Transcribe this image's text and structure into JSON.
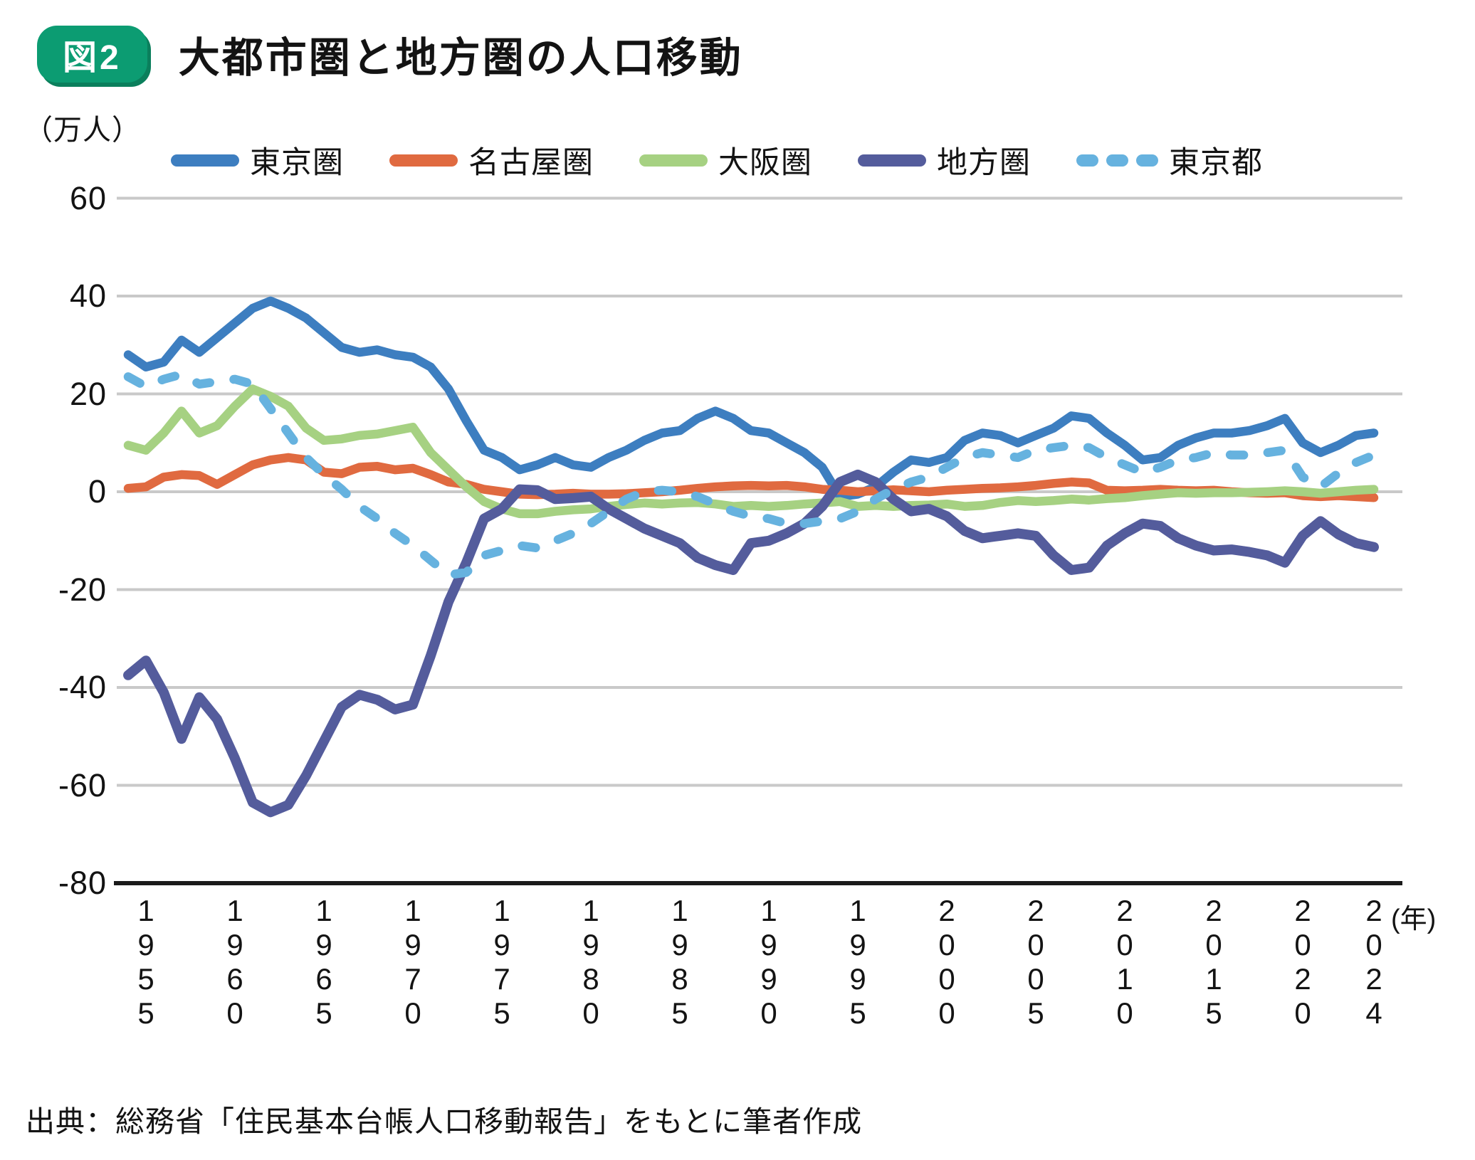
{
  "figure": {
    "badge": "図2",
    "title": "大都市圏と地方圏の人口移動",
    "unit_label": "（万人）",
    "year_label": "(年)",
    "source": "出典：総務省「住民基本台帳人口移動報告」をもとに筆者作成"
  },
  "legend": [
    {
      "label": "東京圏",
      "color": "#3d7ec0",
      "dashed": false
    },
    {
      "label": "名古屋圏",
      "color": "#e06a40",
      "dashed": false
    },
    {
      "label": "大阪圏",
      "color": "#a6d182",
      "dashed": false
    },
    {
      "label": "地方圏",
      "color": "#545c9c",
      "dashed": false
    },
    {
      "label": "東京都",
      "color": "#66b2df",
      "dashed": true
    }
  ],
  "colors": {
    "grid": "#c9c9c9",
    "axis": "#1a1a1a",
    "badge_green": "#0c9c72"
  },
  "chart_data": {
    "type": "line",
    "title": "大都市圏と地方圏の人口移動",
    "ylabel": "（万人）",
    "xlabel": "(年)",
    "ylim": [
      -80,
      60
    ],
    "ytick_interval": 20,
    "grid": true,
    "legend_position": "top",
    "x_start_year": 1954,
    "x_end_year": 2024,
    "x_ticks": [
      "1955",
      "1960",
      "1965",
      "1970",
      "1975",
      "1980",
      "1985",
      "1990",
      "1995",
      "2000",
      "2005",
      "2010",
      "2015",
      "2020",
      "2024"
    ],
    "series": [
      {
        "name": "東京圏",
        "color": "#3d7ec0",
        "style": "solid",
        "values": [
          28,
          25.5,
          26.5,
          31,
          28.5,
          31.5,
          34.5,
          37.5,
          39,
          37.5,
          35.5,
          32.5,
          29.5,
          28.5,
          29,
          28,
          27.5,
          25.5,
          21,
          14.5,
          8.5,
          7,
          4.5,
          5.5,
          7,
          5.5,
          5,
          7,
          8.5,
          10.5,
          12,
          12.5,
          15,
          16.5,
          15,
          12.5,
          12,
          10,
          8,
          5,
          -1,
          -0.5,
          1,
          4,
          6.5,
          6,
          7,
          10.5,
          12,
          11.5,
          10,
          11.5,
          13,
          15.5,
          15,
          12,
          9.5,
          6.5,
          7,
          9.5,
          11,
          12,
          12,
          12.5,
          13.5,
          15,
          10,
          8,
          9.5,
          11.5,
          12
        ]
      },
      {
        "name": "名古屋圏",
        "color": "#e06a40",
        "style": "solid",
        "values": [
          0.7,
          1,
          3,
          3.5,
          3.3,
          1.5,
          3.5,
          5.5,
          6.5,
          7,
          6.5,
          4,
          3.7,
          5,
          5.2,
          4.5,
          4.8,
          3.5,
          2,
          1.5,
          0.5,
          0,
          -0.5,
          -0.6,
          -0.5,
          -0.3,
          -0.5,
          -0.5,
          -0.4,
          -0.2,
          0,
          0.3,
          0.7,
          1,
          1.2,
          1.3,
          1.2,
          1.3,
          1,
          0.5,
          0.3,
          0,
          0.2,
          0.4,
          0.2,
          0,
          0.3,
          0.5,
          0.7,
          0.8,
          1,
          1.3,
          1.7,
          2,
          1.8,
          0.3,
          0.2,
          0.3,
          0.5,
          0.3,
          0.2,
          0.3,
          0,
          -0.2,
          -0.3,
          -0.2,
          -0.8,
          -1,
          -0.8,
          -1,
          -1.2
        ]
      },
      {
        "name": "大阪圏",
        "color": "#a6d182",
        "style": "solid",
        "values": [
          9.5,
          8.5,
          12,
          16.5,
          12,
          13.5,
          17.5,
          21,
          19.5,
          17.5,
          13,
          10.5,
          10.8,
          11.5,
          11.8,
          12.5,
          13.2,
          8,
          4.5,
          1,
          -2,
          -3.5,
          -4.5,
          -4.5,
          -4,
          -3.7,
          -3.5,
          -3,
          -2.6,
          -2.3,
          -2.5,
          -2.3,
          -2.2,
          -2.5,
          -3,
          -2.8,
          -3,
          -2.8,
          -2.5,
          -2.3,
          -2,
          -3,
          -2.8,
          -3,
          -2.8,
          -2.7,
          -2.5,
          -3,
          -2.8,
          -2.2,
          -1.8,
          -2,
          -1.8,
          -1.5,
          -1.7,
          -1.4,
          -1.2,
          -0.8,
          -0.5,
          -0.2,
          -0.3,
          -0.2,
          -0.2,
          -0.1,
          0,
          0.2,
          0,
          -0.3,
          0,
          0.3,
          0.5
        ]
      },
      {
        "name": "地方圏",
        "color": "#545c9c",
        "style": "solid",
        "values": [
          -37.5,
          -34.5,
          -41,
          -50.5,
          -42,
          -46.5,
          -54.5,
          -63.5,
          -65.5,
          -64,
          -58,
          -51,
          -44,
          -41.5,
          -42.5,
          -44.5,
          -43.5,
          -33.5,
          -22.5,
          -14.5,
          -5.5,
          -3.5,
          0.5,
          0.3,
          -1.5,
          -1.3,
          -1,
          -3.5,
          -5.5,
          -7.5,
          -9,
          -10.5,
          -13.5,
          -15,
          -16,
          -10.5,
          -10,
          -8.5,
          -6.5,
          -3,
          2,
          3.5,
          2,
          -1.5,
          -4,
          -3.5,
          -5,
          -8,
          -9.5,
          -9,
          -8.5,
          -9,
          -13,
          -16,
          -15.5,
          -11,
          -8.5,
          -6.5,
          -7,
          -9.5,
          -11,
          -12,
          -11.8,
          -12.3,
          -13,
          -14.5,
          -9,
          -6,
          -8.7,
          -10.5,
          -11.3
        ]
      },
      {
        "name": "東京都",
        "color": "#66b2df",
        "style": "dashed",
        "values": [
          23.5,
          21.5,
          23,
          24,
          22,
          22.5,
          23,
          22,
          17,
          12,
          7,
          3.5,
          0.5,
          -3,
          -5.5,
          -8.5,
          -11,
          -14,
          -17,
          -16.5,
          -13,
          -12,
          -11,
          -11.5,
          -10,
          -8.5,
          -6.5,
          -4,
          -1.5,
          0,
          0.3,
          0,
          -1,
          -2.5,
          -4,
          -5,
          -5.5,
          -6.5,
          -6.5,
          -6,
          -5.5,
          -4,
          -1.5,
          0.5,
          2,
          3,
          5,
          7,
          8,
          7.5,
          7,
          8.5,
          9,
          9.5,
          9,
          7,
          5.5,
          4,
          5,
          6.5,
          7,
          8,
          7.5,
          7.5,
          8,
          8.5,
          3,
          1,
          3.8,
          6,
          7.5
        ]
      }
    ]
  },
  "axes": {
    "y_ticks": [
      "60",
      "40",
      "20",
      "0",
      "-20",
      "-40",
      "-60",
      "-80"
    ]
  }
}
